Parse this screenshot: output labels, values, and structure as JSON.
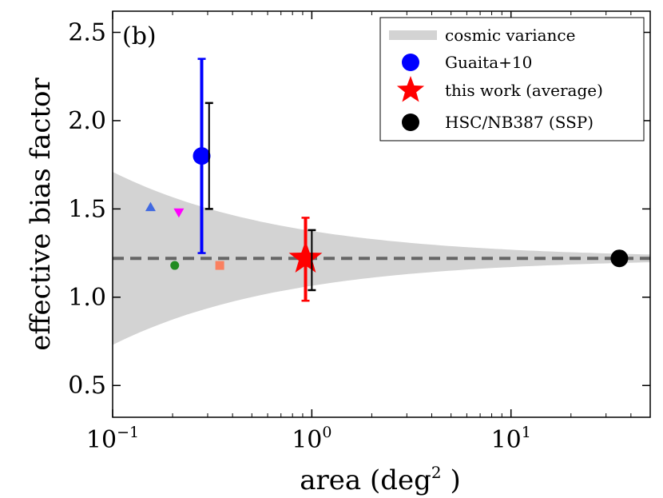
{
  "chart_data": {
    "type": "scatter",
    "title": "",
    "panel_label": "(b)",
    "xlabel": "area",
    "xlabel_unit_base": "deg",
    "xlabel_unit_exp": "2",
    "ylabel": "effective bias factor",
    "xscale": "log",
    "xlim": [
      0.1,
      50
    ],
    "ylim": [
      0.32,
      2.62
    ],
    "xticks": [
      {
        "value": 0.1,
        "base": "10",
        "exp": "−1"
      },
      {
        "value": 1,
        "base": "10",
        "exp": "0"
      },
      {
        "value": 10,
        "base": "10",
        "exp": "1"
      }
    ],
    "yticks": [
      {
        "value": 0.5,
        "label": "0.5"
      },
      {
        "value": 1.0,
        "label": "1.0"
      },
      {
        "value": 1.5,
        "label": "1.5"
      },
      {
        "value": 2.0,
        "label": "2.0"
      },
      {
        "value": 2.5,
        "label": "2.5"
      }
    ],
    "reference_line": {
      "y": 1.22,
      "color": "#666666"
    },
    "cosmic_variance": {
      "name": "cosmic variance",
      "center": 1.22,
      "half_width_at_1deg2": 0.155,
      "color": "#d3d3d3"
    },
    "series": [
      {
        "name": "Guaita+10",
        "marker": "circle",
        "color": "#0000ff",
        "x": 0.28,
        "y": 1.8,
        "y_low": 1.25,
        "y_high": 2.35,
        "in_legend": true
      },
      {
        "name": "Guaita+10 (cosmic variance error)",
        "marker": "none",
        "color": "#000000",
        "x": 0.305,
        "y": 1.8,
        "y_low": 1.5,
        "y_high": 2.1,
        "in_legend": false
      },
      {
        "name": "this work (average)",
        "marker": "star",
        "color": "#ff0000",
        "x": 0.93,
        "y": 1.22,
        "y_low": 0.98,
        "y_high": 1.45,
        "in_legend": true
      },
      {
        "name": "this work (cosmic variance error)",
        "marker": "none",
        "color": "#000000",
        "x": 1.0,
        "y": 1.22,
        "y_low": 1.04,
        "y_high": 1.38,
        "in_legend": false
      },
      {
        "name": "HSC/NB387 (SSP)",
        "marker": "circle",
        "color": "#000000",
        "x": 35,
        "y": 1.22,
        "in_legend": true
      },
      {
        "name": "field 1",
        "marker": "triangle-up",
        "color": "#4169e1",
        "x": 0.155,
        "y": 1.51,
        "in_legend": false
      },
      {
        "name": "field 2",
        "marker": "triangle-down",
        "color": "#ff00ff",
        "x": 0.215,
        "y": 1.48,
        "in_legend": false
      },
      {
        "name": "field 3",
        "marker": "circle-small",
        "color": "#228b22",
        "x": 0.205,
        "y": 1.18,
        "in_legend": false
      },
      {
        "name": "field 4",
        "marker": "square",
        "color": "#fa8060",
        "x": 0.345,
        "y": 1.18,
        "in_legend": false
      }
    ],
    "legend": {
      "position": "top-right",
      "entries": [
        {
          "label": "cosmic variance",
          "marker": "band",
          "color": "#d3d3d3"
        },
        {
          "label": "Guaita+10",
          "marker": "circle",
          "color": "#0000ff"
        },
        {
          "label": "this work (average)",
          "marker": "star",
          "color": "#ff0000"
        },
        {
          "label": "HSC/NB387 (SSP)",
          "marker": "circle",
          "color": "#000000"
        }
      ]
    }
  }
}
